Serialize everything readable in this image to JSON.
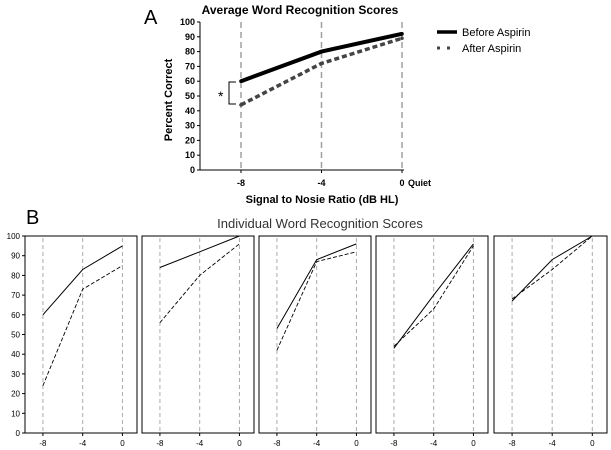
{
  "chart_data": [
    {
      "panel": "A",
      "type": "line",
      "title": "Average Word Recognition Scores",
      "xlabel": "Signal to Nosie Ratio (dB HL)",
      "ylabel": "Percent Correct",
      "x": [
        -8,
        -4,
        0
      ],
      "x_tick_labels": [
        "-8",
        "-4",
        "0"
      ],
      "x_extra_label": "Quiet",
      "ylim": [
        0,
        100
      ],
      "y_ticks": [
        0,
        10,
        20,
        30,
        40,
        50,
        60,
        70,
        80,
        90,
        100
      ],
      "legend_position": "top-right",
      "annotation": "*",
      "series": [
        {
          "name": "Before Aspirin",
          "values": [
            60,
            80,
            92
          ],
          "style": "solid",
          "color": "#000000"
        },
        {
          "name": "After Aspirin",
          "values": [
            44,
            72,
            89
          ],
          "style": "dashed",
          "color": "#444444"
        }
      ],
      "gridlines": "vertical dashed at each x",
      "grid_color": "#a0a0a0"
    },
    {
      "panel": "B",
      "type": "line",
      "title": "Individual Word Recognition Scores",
      "x": [
        -8,
        -4,
        0
      ],
      "x_tick_labels": [
        "-8",
        "-4",
        "0"
      ],
      "ylim": [
        0,
        100
      ],
      "y_ticks": [
        0,
        10,
        20,
        30,
        40,
        50,
        60,
        70,
        80,
        90,
        100
      ],
      "subjects": [
        {
          "before": [
            60,
            83,
            95
          ],
          "after": [
            24,
            73,
            85
          ]
        },
        {
          "before": [
            84,
            92,
            100
          ],
          "after": [
            56,
            80,
            96
          ]
        },
        {
          "before": [
            53,
            88,
            96
          ],
          "after": [
            42,
            87,
            92
          ]
        },
        {
          "before": [
            43,
            70,
            96
          ],
          "after": [
            44,
            63,
            95
          ]
        },
        {
          "before": [
            67,
            88,
            100
          ],
          "after": [
            68,
            83,
            100
          ]
        }
      ],
      "line_color": "#000000"
    }
  ]
}
